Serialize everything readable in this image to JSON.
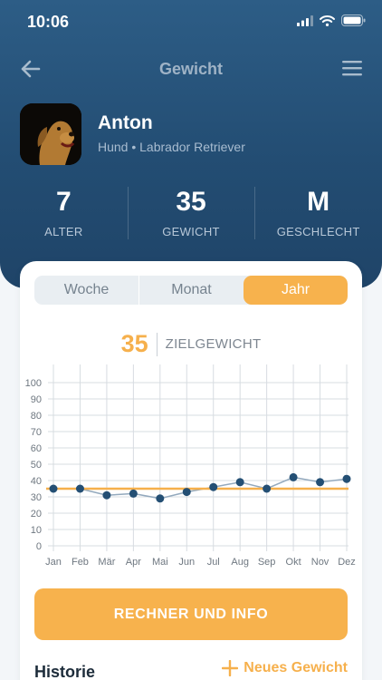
{
  "status": {
    "time": "10:06"
  },
  "nav": {
    "title": "Gewicht"
  },
  "pet": {
    "name": "Anton",
    "description": "Hund • Labrador Retriever"
  },
  "stats": [
    {
      "value": "7",
      "label": "ALTER"
    },
    {
      "value": "35",
      "label": "GEWICHT"
    },
    {
      "value": "M",
      "label": "GESCHLECHT"
    }
  ],
  "tabs": {
    "week": "Woche",
    "month": "Monat",
    "year": "Jahr",
    "selected": "Jahr"
  },
  "target": {
    "value": "35",
    "label": "ZIELGEWICHT"
  },
  "chart_data": {
    "type": "line",
    "categories": [
      "Jan",
      "Feb",
      "Mär",
      "Apr",
      "Mai",
      "Jun",
      "Jul",
      "Aug",
      "Sep",
      "Okt",
      "Nov",
      "Dez"
    ],
    "y_ticks": [
      "0",
      "10",
      "20",
      "30",
      "40",
      "50",
      "60",
      "70",
      "80",
      "90",
      "100"
    ],
    "ylim": [
      0,
      100
    ],
    "grid": true,
    "series": [
      {
        "values": [
          35,
          35,
          31,
          32,
          29,
          33,
          36,
          39,
          35,
          42,
          39,
          41
        ]
      }
    ],
    "target_line": 35,
    "colors": {
      "line": "#93a9bd",
      "point": "#244f74",
      "target": "#f6b04c",
      "grid": "#d7dce1"
    }
  },
  "cta": {
    "label": "RECHNER UND INFO"
  },
  "history": {
    "title": "Historie",
    "add_label": "Neues Gewicht"
  },
  "colors": {
    "header": "#234d73",
    "accent": "#f7b24d"
  }
}
